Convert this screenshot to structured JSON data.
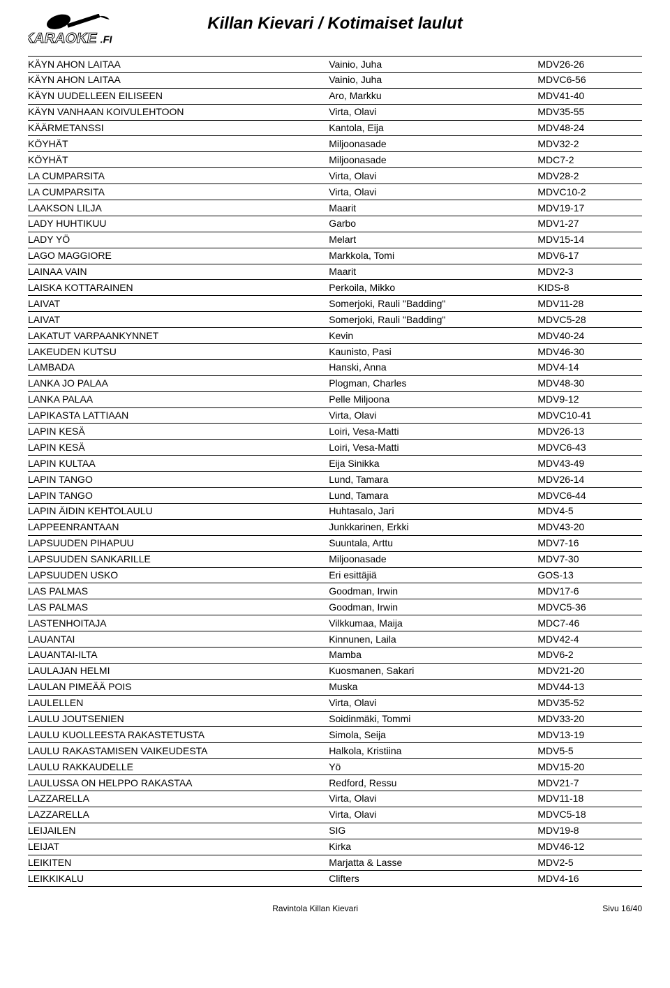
{
  "page_title": "Killan Kievari / Kotimaiset laulut",
  "logo_text_top": "KARAOKE",
  "logo_text_suffix": ".FI",
  "columns": {
    "c1_width": "49%",
    "c2_width": "34%",
    "c3_width": "17%"
  },
  "rows": [
    {
      "song": "KÄYN AHON LAITAA",
      "artist": "Vainio, Juha",
      "code": "MDV26-26"
    },
    {
      "song": "KÄYN AHON LAITAA",
      "artist": "Vainio, Juha",
      "code": "MDVC6-56"
    },
    {
      "song": "KÄYN UUDELLEEN EILISEEN",
      "artist": "Aro, Markku",
      "code": "MDV41-40"
    },
    {
      "song": "KÄYN VANHAAN KOIVULEHTOON",
      "artist": "Virta, Olavi",
      "code": "MDV35-55"
    },
    {
      "song": "KÄÄRMETANSSI",
      "artist": "Kantola, Eija",
      "code": "MDV48-24"
    },
    {
      "song": "KÖYHÄT",
      "artist": "Miljoonasade",
      "code": "MDV32-2"
    },
    {
      "song": "KÖYHÄT",
      "artist": "Miljoonasade",
      "code": "MDC7-2"
    },
    {
      "song": "LA CUMPARSITA",
      "artist": "Virta, Olavi",
      "code": "MDV28-2"
    },
    {
      "song": "LA CUMPARSITA",
      "artist": "Virta, Olavi",
      "code": "MDVC10-2"
    },
    {
      "song": "LAAKSON LILJA",
      "artist": "Maarit",
      "code": "MDV19-17"
    },
    {
      "song": "LADY HUHTIKUU",
      "artist": "Garbo",
      "code": "MDV1-27"
    },
    {
      "song": "LADY YÖ",
      "artist": "Melart",
      "code": "MDV15-14"
    },
    {
      "song": "LAGO MAGGIORE",
      "artist": "Markkola, Tomi",
      "code": "MDV6-17"
    },
    {
      "song": "LAINAA VAIN",
      "artist": "Maarit",
      "code": "MDV2-3"
    },
    {
      "song": "LAISKA KOTTARAINEN",
      "artist": "Perkoila, Mikko",
      "code": "KIDS-8"
    },
    {
      "song": "LAIVAT",
      "artist": "Somerjoki, Rauli \"Badding\"",
      "code": "MDV11-28"
    },
    {
      "song": "LAIVAT",
      "artist": "Somerjoki, Rauli \"Badding\"",
      "code": "MDVC5-28"
    },
    {
      "song": "LAKATUT VARPAANKYNNET",
      "artist": "Kevin",
      "code": "MDV40-24"
    },
    {
      "song": "LAKEUDEN KUTSU",
      "artist": "Kaunisto, Pasi",
      "code": "MDV46-30"
    },
    {
      "song": "LAMBADA",
      "artist": "Hanski, Anna",
      "code": "MDV4-14"
    },
    {
      "song": "LANKA JO PALAA",
      "artist": "Plogman, Charles",
      "code": "MDV48-30"
    },
    {
      "song": "LANKA PALAA",
      "artist": "Pelle Miljoona",
      "code": "MDV9-12"
    },
    {
      "song": "LAPIKASTA LATTIAAN",
      "artist": "Virta, Olavi",
      "code": "MDVC10-41"
    },
    {
      "song": "LAPIN KESÄ",
      "artist": "Loiri, Vesa-Matti",
      "code": "MDV26-13"
    },
    {
      "song": "LAPIN KESÄ",
      "artist": "Loiri, Vesa-Matti",
      "code": "MDVC6-43"
    },
    {
      "song": "LAPIN KULTAA",
      "artist": "Eija Sinikka",
      "code": "MDV43-49"
    },
    {
      "song": "LAPIN TANGO",
      "artist": "Lund, Tamara",
      "code": "MDV26-14"
    },
    {
      "song": "LAPIN TANGO",
      "artist": "Lund, Tamara",
      "code": "MDVC6-44"
    },
    {
      "song": "LAPIN ÄIDIN KEHTOLAULU",
      "artist": "Huhtasalo, Jari",
      "code": "MDV4-5"
    },
    {
      "song": "LAPPEENRANTAAN",
      "artist": "Junkkarinen, Erkki",
      "code": "MDV43-20"
    },
    {
      "song": "LAPSUUDEN PIHAPUU",
      "artist": "Suuntala, Arttu",
      "code": "MDV7-16"
    },
    {
      "song": "LAPSUUDEN SANKARILLE",
      "artist": "Miljoonasade",
      "code": "MDV7-30"
    },
    {
      "song": "LAPSUUDEN USKO",
      "artist": "Eri esittäjiä",
      "code": "GOS-13"
    },
    {
      "song": "LAS PALMAS",
      "artist": "Goodman, Irwin",
      "code": "MDV17-6"
    },
    {
      "song": "LAS PALMAS",
      "artist": "Goodman, Irwin",
      "code": "MDVC5-36"
    },
    {
      "song": "LASTENHOITAJA",
      "artist": "Vilkkumaa, Maija",
      "code": "MDC7-46"
    },
    {
      "song": "LAUANTAI",
      "artist": "Kinnunen, Laila",
      "code": "MDV42-4"
    },
    {
      "song": "LAUANTAI-ILTA",
      "artist": "Mamba",
      "code": "MDV6-2"
    },
    {
      "song": "LAULAJAN HELMI",
      "artist": "Kuosmanen, Sakari",
      "code": "MDV21-20"
    },
    {
      "song": "LAULAN PIMEÄÄ POIS",
      "artist": "Muska",
      "code": "MDV44-13"
    },
    {
      "song": "LAULELLEN",
      "artist": "Virta, Olavi",
      "code": "MDV35-52"
    },
    {
      "song": "LAULU JOUTSENIEN",
      "artist": "Soidinmäki, Tommi",
      "code": "MDV33-20"
    },
    {
      "song": "LAULU KUOLLEESTA RAKASTETUSTA",
      "artist": "Simola, Seija",
      "code": "MDV13-19"
    },
    {
      "song": "LAULU RAKASTAMISEN VAIKEUDESTA",
      "artist": "Halkola, Kristiina",
      "code": "MDV5-5"
    },
    {
      "song": "LAULU RAKKAUDELLE",
      "artist": "Yö",
      "code": "MDV15-20"
    },
    {
      "song": "LAULUSSA ON HELPPO RAKASTAA",
      "artist": "Redford, Ressu",
      "code": "MDV21-7"
    },
    {
      "song": "LAZZARELLA",
      "artist": "Virta, Olavi",
      "code": "MDV11-18"
    },
    {
      "song": "LAZZARELLA",
      "artist": "Virta, Olavi",
      "code": "MDVC5-18"
    },
    {
      "song": "LEIJAILEN",
      "artist": "SIG",
      "code": "MDV19-8"
    },
    {
      "song": "LEIJAT",
      "artist": "Kirka",
      "code": "MDV46-12"
    },
    {
      "song": "LEIKITEN",
      "artist": "Marjatta & Lasse",
      "code": "MDV2-5"
    },
    {
      "song": "LEIKKIKALU",
      "artist": "Clifters",
      "code": "MDV4-16"
    }
  ],
  "footer_venue": "Ravintola Killan Kievari",
  "footer_page": "Sivu 16/40"
}
